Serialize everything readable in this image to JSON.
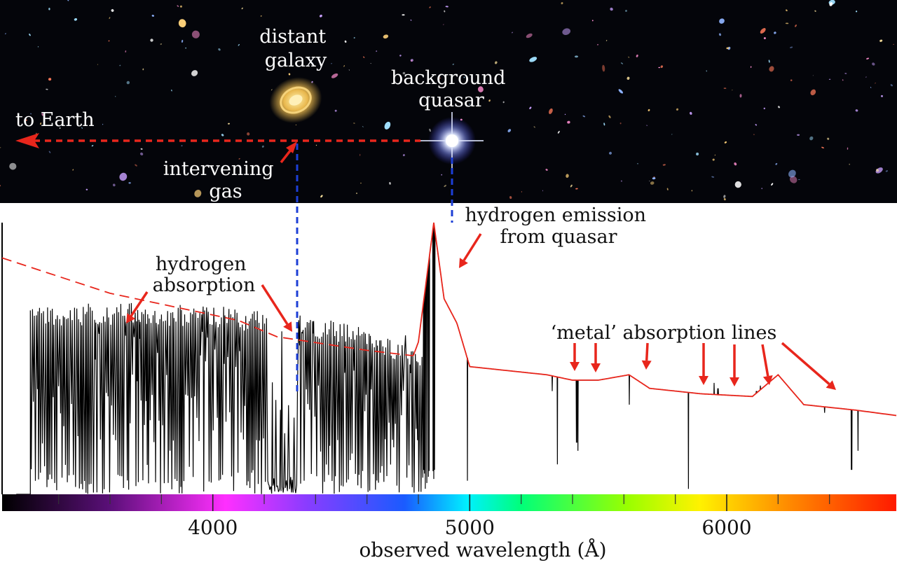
{
  "sky": {
    "labels": {
      "distant_galaxy": [
        "distant",
        "galaxy"
      ],
      "background_quasar": [
        "background",
        "quasar"
      ],
      "to_earth": "to Earth",
      "intervening_gas": [
        "intervening",
        "gas"
      ]
    },
    "colors": {
      "background": "#04050a",
      "sightline": "#e8261c",
      "galaxy": "#e9b84e"
    }
  },
  "spectrum": {
    "annotations": {
      "hydrogen_emission": [
        "hydrogen emission",
        "from quasar"
      ],
      "hydrogen_absorption": [
        "hydrogen",
        "absorption"
      ],
      "metal_absorption": "‘metal’ absorption lines"
    },
    "colors": {
      "spectrum": "#000000",
      "continuum": "#e8261c",
      "arrow": "#e8261c",
      "guide": "#1d3fd6"
    }
  },
  "chart_data": {
    "type": "line",
    "xlabel": "observed wavelength (Å)",
    "xlim": [
      3180,
      6660
    ],
    "x_ticks": [
      4000,
      5000,
      6000
    ],
    "x_minor_ticks": [
      3400,
      3600,
      3800,
      4200,
      4400,
      4600,
      4800,
      5200,
      5400,
      5600,
      5800,
      6200,
      6400
    ],
    "grid": false,
    "series": [
      {
        "line": "solid",
        "lyman_alpha_forest": {
          "range": [
            3290,
            4820
          ],
          "top_flux": [
            0.69,
            0.71,
            0.7,
            0.69,
            0.67,
            0.62,
            0.52
          ],
          "absorption_depth": "near zero"
        },
        "emission_peak": {
          "wavelength": 4860,
          "flux": 1.0
        },
        "metal_lines": [
          {
            "wavelength": 4990,
            "flux_min": 0.05
          },
          {
            "wavelength": 5320,
            "flux_min": 0.38
          },
          {
            "wavelength": 5340,
            "flux_min": 0.11
          },
          {
            "wavelength": 5415,
            "flux_min": 0.19
          },
          {
            "wavelength": 5420,
            "flux_min": 0.16
          },
          {
            "wavelength": 5620,
            "flux_min": 0.33
          },
          {
            "wavelength": 5850,
            "flux_min": 0.02
          },
          {
            "wavelength": 5950,
            "flux_min": 0.41
          },
          {
            "wavelength": 5965,
            "flux_min": 0.39
          },
          {
            "wavelength": 6115,
            "flux_min": 0.38
          },
          {
            "wavelength": 6130,
            "flux_min": 0.4
          },
          {
            "wavelength": 6380,
            "flux_min": 0.3
          },
          {
            "wavelength": 6485,
            "flux_min": 0.09
          },
          {
            "wavelength": 6510,
            "flux_min": 0.16
          }
        ]
      },
      {
        "line": "dashed",
        "continuum": [
          [
            3180,
            0.87
          ],
          [
            3600,
            0.74
          ],
          [
            4000,
            0.66
          ],
          [
            4100,
            0.64
          ],
          [
            4250,
            0.58
          ],
          [
            4600,
            0.53
          ],
          [
            4780,
            0.51
          ],
          [
            4800,
            0.56
          ],
          [
            4860,
            1.0
          ],
          [
            4900,
            0.72
          ],
          [
            4950,
            0.63
          ],
          [
            5000,
            0.47
          ],
          [
            5200,
            0.45
          ],
          [
            5300,
            0.44
          ],
          [
            5400,
            0.42
          ],
          [
            5500,
            0.42
          ],
          [
            5620,
            0.44
          ],
          [
            5700,
            0.39
          ],
          [
            5900,
            0.37
          ],
          [
            6100,
            0.36
          ],
          [
            6200,
            0.44
          ],
          [
            6300,
            0.33
          ],
          [
            6500,
            0.31
          ],
          [
            6660,
            0.29
          ]
        ]
      }
    ]
  }
}
